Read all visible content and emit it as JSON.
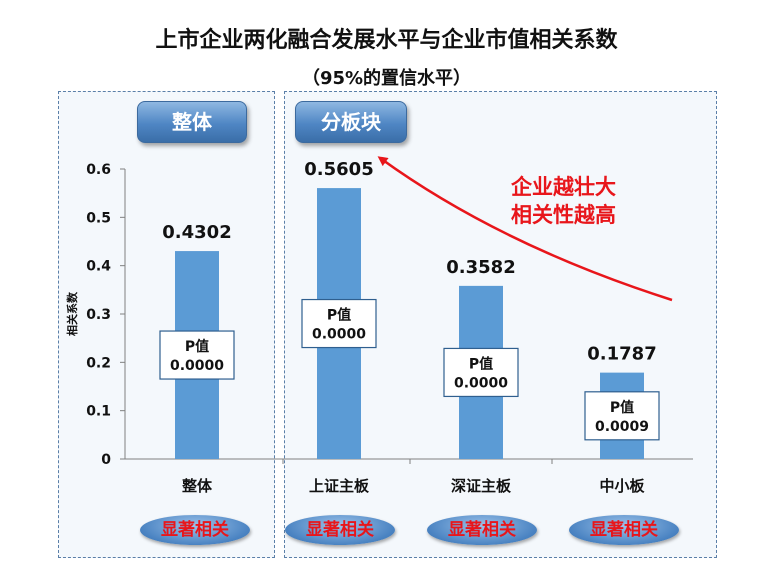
{
  "title": "上市企业两化融合发展水平与企业市值相关系数",
  "subtitle": "（95%的置信水平）",
  "overall_group_label": "整体",
  "segment_group_label": "分板块",
  "annotation_line1": "企业越壮大",
  "annotation_line2": "相关性越高",
  "colors": {
    "bar": "#5b9bd5",
    "annotation": "#e8161b",
    "significance_text": "#e8161b"
  },
  "chart_data": {
    "type": "bar",
    "title": "上市企业两化融合发展水平与企业市值相关系数",
    "subtitle": "（95%的置信水平）",
    "ylabel": "相关系数",
    "xlabel": "",
    "ylim": [
      0,
      0.6
    ],
    "yticks": [
      0,
      0.1,
      0.2,
      0.3,
      0.4,
      0.5,
      0.6
    ],
    "ytick_labels": [
      "0",
      "0.1",
      "0.2",
      "0.3",
      "0.4",
      "0.5",
      "0.6"
    ],
    "categories": [
      "整体",
      "上证主板",
      "深证主板",
      "中小板"
    ],
    "values": [
      0.4302,
      0.5605,
      0.3582,
      0.1787
    ],
    "value_labels": [
      "0.4302",
      "0.5605",
      "0.3582",
      "0.1787"
    ],
    "p_label": "P值",
    "p_values": [
      "0.0000",
      "0.0000",
      "0.0000",
      "0.0009"
    ],
    "significance": [
      "显著相关",
      "显著相关",
      "显著相关",
      "显著相关"
    ],
    "grid": false
  }
}
